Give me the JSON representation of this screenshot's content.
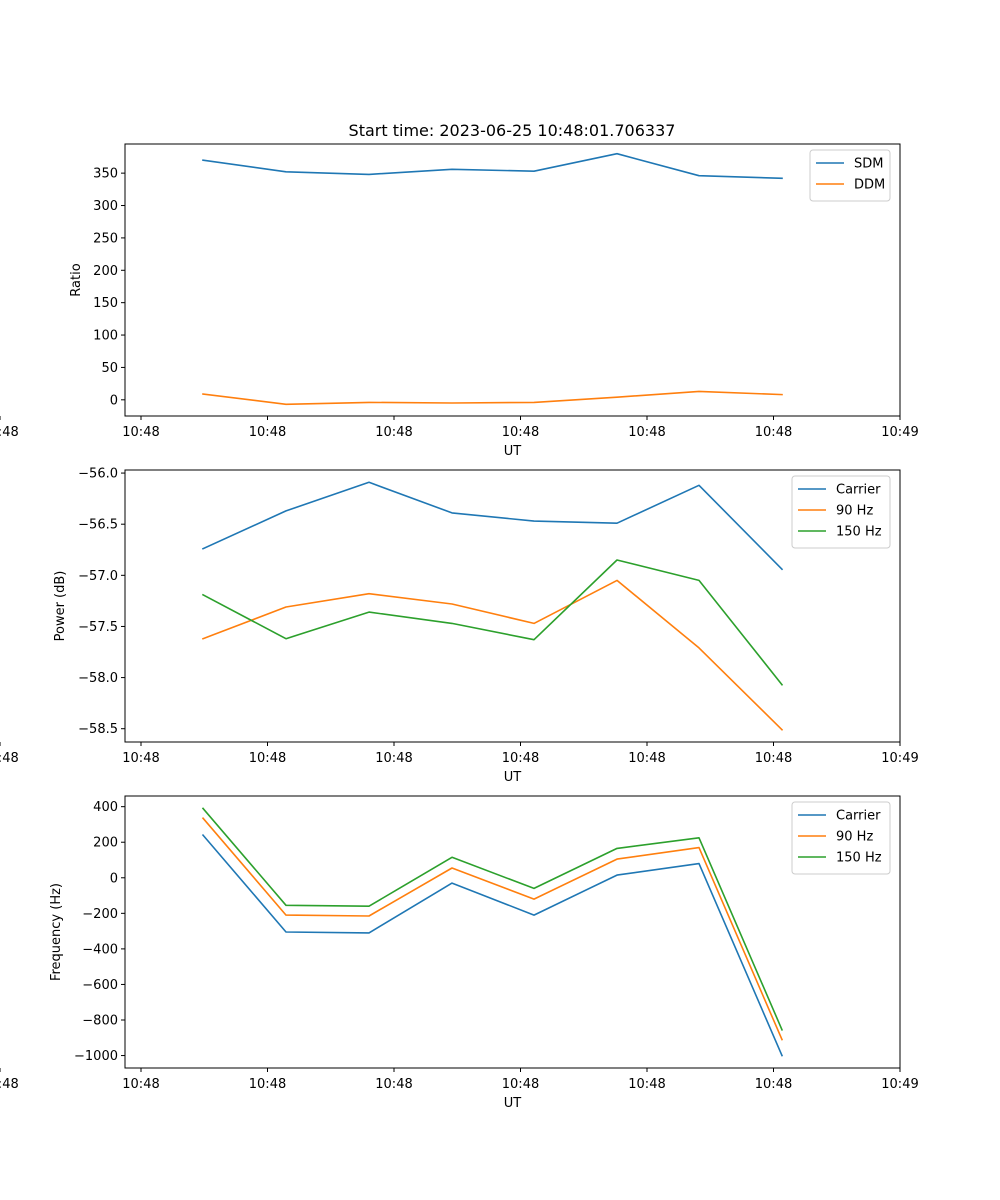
{
  "figure": {
    "title": "Start time: 2023-06-25 10:48:01.706337"
  },
  "chart_data": [
    {
      "type": "line",
      "xlabel": "UT",
      "ylabel": "Ratio",
      "x_tick_labels": [
        "10:48",
        "10:48",
        "10:48",
        "10:48",
        "10:48",
        "10:48",
        "10:48"
      ],
      "x_end_tick_label": "10:49",
      "ylim": [
        -25,
        395
      ],
      "yticks": [
        0,
        50,
        100,
        150,
        200,
        250,
        300,
        350
      ],
      "grid": false,
      "legend": "top-right",
      "series": [
        {
          "name": "SDM",
          "color": "#1f77b4",
          "values": [
            370,
            352,
            348,
            356,
            353,
            380,
            346,
            342
          ]
        },
        {
          "name": "DDM",
          "color": "#ff7f0e",
          "values": [
            9,
            -7,
            -4,
            -5,
            -4,
            4,
            13,
            8
          ]
        }
      ]
    },
    {
      "type": "line",
      "xlabel": "UT",
      "ylabel": "Power (dB)",
      "x_tick_labels": [
        "10:48",
        "10:48",
        "10:48",
        "10:48",
        "10:48",
        "10:48",
        "10:48"
      ],
      "x_end_tick_label": "10:49",
      "ylim": [
        -58.63,
        -55.97
      ],
      "yticks": [
        -56.0,
        -56.5,
        -57.0,
        -57.5,
        -58.0,
        -58.5
      ],
      "ytick_labels": [
        "−56.0",
        "−56.5",
        "−57.0",
        "−57.5",
        "−58.0",
        "−58.5"
      ],
      "grid": false,
      "legend": "top-right",
      "series": [
        {
          "name": "Carrier",
          "color": "#1f77b4",
          "values": [
            -56.74,
            -56.37,
            -56.09,
            -56.39,
            -56.47,
            -56.49,
            -56.12,
            -56.94
          ]
        },
        {
          "name": "90 Hz",
          "color": "#ff7f0e",
          "values": [
            -57.62,
            -57.31,
            -57.18,
            -57.28,
            -57.47,
            -57.05,
            -57.71,
            -58.51
          ]
        },
        {
          "name": "150 Hz",
          "color": "#2ca02c",
          "values": [
            -57.19,
            -57.62,
            -57.36,
            -57.47,
            -57.63,
            -56.85,
            -57.05,
            -58.07
          ]
        }
      ]
    },
    {
      "type": "line",
      "xlabel": "UT",
      "ylabel": "Frequency (Hz)",
      "x_tick_labels": [
        "10:48",
        "10:48",
        "10:48",
        "10:48",
        "10:48",
        "10:48",
        "10:48"
      ],
      "x_end_tick_label": "10:49",
      "ylim": [
        -1070,
        460
      ],
      "yticks": [
        400,
        200,
        0,
        -200,
        -400,
        -600,
        -800,
        -1000
      ],
      "ytick_labels": [
        "400",
        "200",
        "0",
        "−200",
        "−400",
        "−600",
        "−800",
        "−1000"
      ],
      "grid": false,
      "legend": "top-right",
      "series": [
        {
          "name": "Carrier",
          "color": "#1f77b4",
          "values": [
            240,
            -305,
            -310,
            -30,
            -210,
            15,
            80,
            -1000
          ]
        },
        {
          "name": "90 Hz",
          "color": "#ff7f0e",
          "values": [
            335,
            -210,
            -215,
            55,
            -120,
            105,
            170,
            -910
          ]
        },
        {
          "name": "150 Hz",
          "color": "#2ca02c",
          "values": [
            390,
            -155,
            -160,
            115,
            -60,
            165,
            225,
            -855
          ]
        }
      ]
    }
  ]
}
